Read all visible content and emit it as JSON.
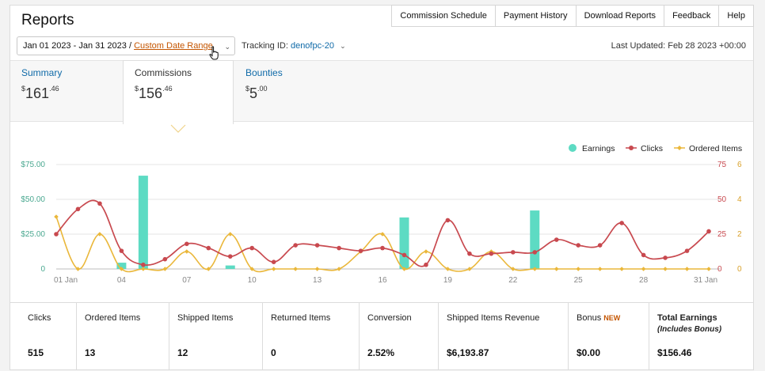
{
  "page": {
    "title": "Reports"
  },
  "nav": [
    "Commission Schedule",
    "Payment History",
    "Download Reports",
    "Feedback",
    "Help"
  ],
  "filters": {
    "date_range": "Jan 01 2023 - Jan 31 2023 /",
    "date_range_link": "Custom Date Range",
    "tracking_label": "Tracking ID:",
    "tracking_id": "denofpc-20",
    "last_updated": "Last Updated: Feb 28 2023 +00:00"
  },
  "tabs": {
    "summary": {
      "label": "Summary",
      "dollar": "$",
      "whole": "161",
      "cents": ".46"
    },
    "commissions": {
      "label": "Commissions",
      "dollar": "$",
      "whole": "156",
      "cents": ".46"
    },
    "bounties": {
      "label": "Bounties",
      "dollar": "$",
      "whole": "5",
      "cents": ".00"
    }
  },
  "chart_data": {
    "type": "bar",
    "x_ticks": [
      "01 Jan",
      "04",
      "07",
      "10",
      "13",
      "16",
      "19",
      "22",
      "25",
      "28",
      "31 Jan"
    ],
    "y_left_ticks": [
      "0",
      "$25.00",
      "$50.00",
      "$75.00"
    ],
    "y_clicks_ticks": [
      "0",
      "25",
      "50",
      "75"
    ],
    "y_items_ticks": [
      "0",
      "2",
      "4",
      "6"
    ],
    "ylim_earnings": [
      0,
      75
    ],
    "ylim_clicks": [
      0,
      75
    ],
    "ylim_items": [
      0,
      6
    ],
    "legend_position": "top-right",
    "series": [
      {
        "name": "Earnings",
        "type": "bar",
        "color": "#5ddbc3",
        "values": [
          0,
          0,
          0,
          4.5,
          67,
          0,
          0,
          0,
          2.5,
          0,
          0,
          0,
          0,
          0,
          0,
          0,
          37,
          0,
          0,
          0,
          0,
          0,
          42,
          0,
          0,
          0,
          0,
          0,
          0,
          0,
          0
        ]
      },
      {
        "name": "Clicks",
        "type": "line",
        "color": "#c8494f",
        "values": [
          25,
          43,
          47,
          13,
          3,
          7,
          18,
          15,
          9,
          15,
          5,
          17,
          17,
          15,
          13,
          15,
          10,
          3,
          35,
          11,
          11,
          12,
          12,
          21,
          17,
          17,
          33,
          10,
          8,
          13,
          27
        ]
      },
      {
        "name": "Ordered Items",
        "type": "line",
        "color": "#eab73a",
        "values": [
          3,
          0,
          2,
          0,
          0,
          0,
          1,
          0,
          2,
          0,
          0,
          0,
          0,
          0,
          1,
          2,
          0,
          1,
          0,
          0,
          1,
          0,
          0,
          0,
          0,
          0,
          0,
          0,
          0,
          0,
          0
        ]
      }
    ]
  },
  "stats": [
    {
      "label": "Clicks",
      "value": "515"
    },
    {
      "label": "Ordered Items",
      "value": "13"
    },
    {
      "label": "Shipped Items",
      "value": "12"
    },
    {
      "label": "Returned Items",
      "value": "0"
    },
    {
      "label": "Conversion",
      "value": "2.52%"
    },
    {
      "label": "Shipped Items Revenue",
      "value": "$6,193.87"
    },
    {
      "label": "Bonus",
      "badge": "NEW",
      "value": "$0.00"
    },
    {
      "label": "Total Earnings",
      "sub": "(Includes Bonus)",
      "value": "$156.46"
    }
  ]
}
